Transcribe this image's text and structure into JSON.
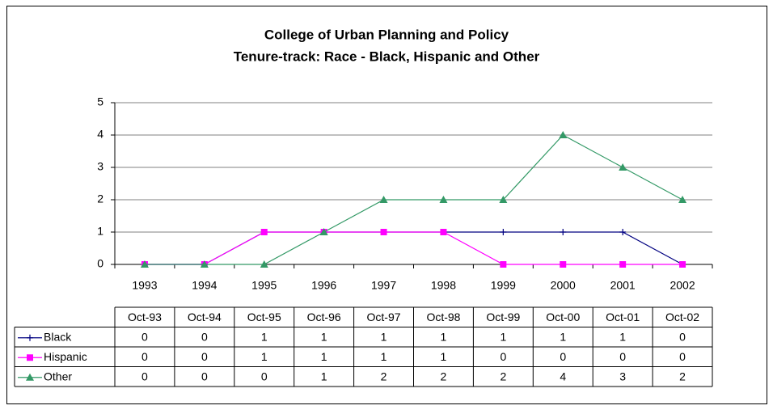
{
  "chart_data": {
    "type": "line",
    "title": [
      "College of Urban Planning and Policy",
      "Tenure-track: Race - Black, Hispanic and Other"
    ],
    "categories": [
      "1993",
      "1994",
      "1995",
      "1996",
      "1997",
      "1998",
      "1999",
      "2000",
      "2001",
      "2002"
    ],
    "table_headers": [
      "Oct-93",
      "Oct-94",
      "Oct-95",
      "Oct-96",
      "Oct-97",
      "Oct-98",
      "Oct-99",
      "Oct-00",
      "Oct-01",
      "Oct-02"
    ],
    "series": [
      {
        "name": "Black",
        "color": "#000080",
        "marker": "plus",
        "values": [
          0,
          0,
          1,
          1,
          1,
          1,
          1,
          1,
          1,
          0
        ]
      },
      {
        "name": "Hispanic",
        "color": "#ff00ff",
        "marker": "square",
        "values": [
          0,
          0,
          1,
          1,
          1,
          1,
          0,
          0,
          0,
          0
        ]
      },
      {
        "name": "Other",
        "color": "#339966",
        "marker": "triangle",
        "values": [
          0,
          0,
          0,
          1,
          2,
          2,
          2,
          4,
          3,
          2
        ]
      }
    ],
    "ylim": [
      0,
      5
    ],
    "yticks": [
      0,
      1,
      2,
      3,
      4,
      5
    ],
    "grid": true
  }
}
